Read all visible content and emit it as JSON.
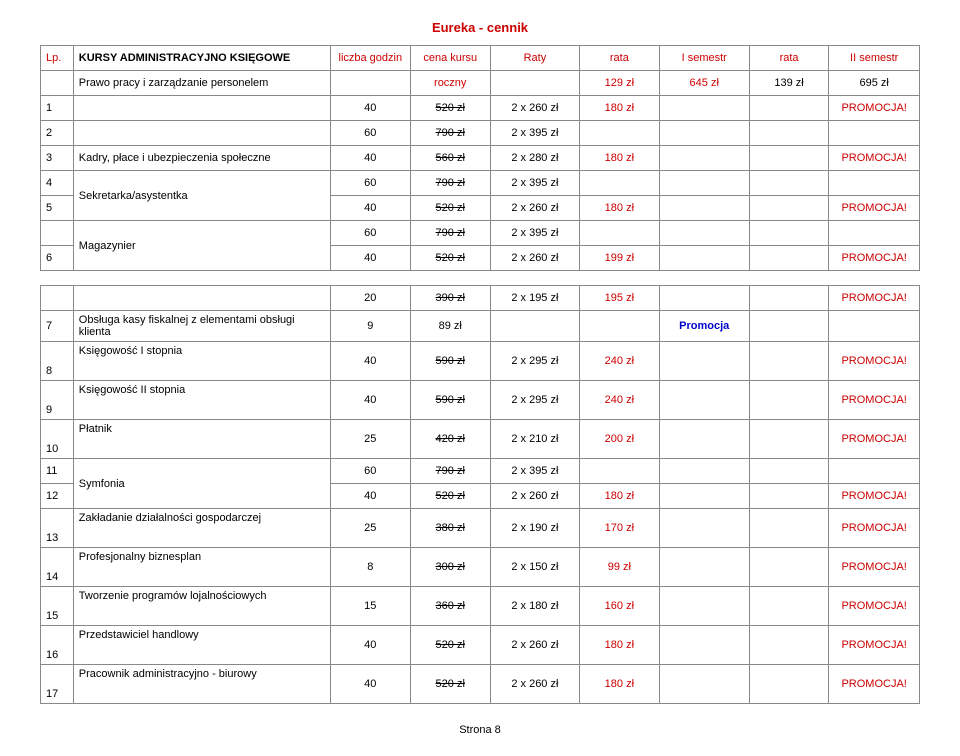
{
  "title": "Eureka - cennik",
  "headers": {
    "lp": "Lp.",
    "course": "KURSY ADMINISTRACYJNO KSIĘGOWE",
    "hours": "liczba godzin",
    "price": "cena kursu",
    "raty": "Raty",
    "rata1": "rata",
    "sem1": "I semestr",
    "rata2": "rata",
    "sem2": "II semestr"
  },
  "colors": {
    "red": "#cc0000",
    "blue": "#0000cc",
    "border": "#888888",
    "bg": "#ffffff"
  },
  "rows": [
    {
      "type": "subheader",
      "course": "Prawo pracy i zarządzanie personelem",
      "price": "roczny",
      "rata1": "129 zł",
      "sem1": "645 zł",
      "rata2": "139 zł",
      "sem2": "695 zł",
      "sem1_red": true,
      "rata1_red": true
    },
    {
      "lp": "1",
      "hours": "40",
      "price": "520 zł",
      "strike": true,
      "raty": "2 x 260 zł",
      "rata1": "180 zł",
      "sem2": "PROMOCJA!",
      "rata1_red": true,
      "sem2_red": true
    },
    {
      "lp": "2",
      "hours": "60",
      "price": "790 zł",
      "strike": true,
      "raty": "2 x 395 zł"
    },
    {
      "lp": "3",
      "course": "Kadry, płace  i ubezpieczenia społeczne",
      "hours": "40",
      "price": "560 zł",
      "strike": true,
      "raty": "2 x 280 zł",
      "rata1": "180 zł",
      "sem2": "PROMOCJA!",
      "rata1_red": true,
      "sem2_red": true
    },
    {
      "lp": "4",
      "course": "Sekretarka/asystentka",
      "courseRowspan": 2,
      "hours": "60",
      "price": "790 zł",
      "strike": true,
      "raty": "2 x 395 zł"
    },
    {
      "lp": "5",
      "hours": "40",
      "price": "520 zł",
      "strike": true,
      "raty": "2 x 260 zł",
      "rata1": "180 zł",
      "sem2": "PROMOCJA!",
      "rata1_red": true,
      "sem2_red": true
    },
    {
      "lp": "",
      "course": "Magazynier",
      "courseRowspan": 2,
      "hours": "60",
      "price": "790 zł",
      "strike": true,
      "raty": "2 x 395 zł"
    },
    {
      "lp": "6",
      "hours": "40",
      "price": "520 zł",
      "strike": true,
      "raty": "2 x 260 zł",
      "rata1": "199 zł",
      "sem2": "PROMOCJA!",
      "rata1_red": true,
      "sem2_red": true
    },
    {
      "type": "spacer"
    },
    {
      "lp": "",
      "course": "",
      "hours": "20",
      "price": "390 zł",
      "strike": true,
      "raty": "2 x 195 zł",
      "rata1": "195 zł",
      "sem2": "PROMOCJA!",
      "rata1_red": true,
      "sem2_red": true
    },
    {
      "lp": "7",
      "course": "Obsługa kasy fiskalnej  z elementami obsługi klienta",
      "hours": "9",
      "price": "89 zł",
      "sem1": "Promocja",
      "sem1_blue": true,
      "sem1_bold": true
    },
    {
      "lp": "8",
      "course": "Księgowość I stopnia",
      "tall": true,
      "hours": "40",
      "price": "590 zł",
      "strike": true,
      "raty": "2 x 295 zł",
      "rata1": "240 zł",
      "sem2": "PROMOCJA!",
      "rata1_red": true,
      "sem2_red": true
    },
    {
      "lp": "9",
      "course": "Księgowość II stopnia",
      "tall": true,
      "hours": "40",
      "price": "590 zł",
      "strike": true,
      "raty": "2 x 295 zł",
      "rata1": "240 zł",
      "sem2": "PROMOCJA!",
      "rata1_red": true,
      "sem2_red": true
    },
    {
      "lp": "10",
      "course": "Płatnik",
      "tall": true,
      "hours": "25",
      "price": "420 zł",
      "strike": true,
      "raty": "2 x 210 zł",
      "rata1": "200 zł",
      "sem2": "PROMOCJA!",
      "rata1_red": true,
      "sem2_red": true
    },
    {
      "lp": "11",
      "course": "Symfonia",
      "courseRowspan": 2,
      "hours": "60",
      "price": "790 zł",
      "strike": true,
      "raty": "2 x 395 zł"
    },
    {
      "lp": "12",
      "hours": "40",
      "price": "520 zł",
      "strike": true,
      "raty": "2 x 260 zł",
      "rata1": "180 zł",
      "sem2": "PROMOCJA!",
      "rata1_red": true,
      "sem2_red": true
    },
    {
      "lp": "13",
      "course": "Zakładanie działalności gospodarczej",
      "tall": true,
      "hours": "25",
      "price": "380 zł",
      "strike": true,
      "raty": "2 x 190 zł",
      "rata1": "170 zł",
      "sem2": "PROMOCJA!",
      "rata1_red": true,
      "sem2_red": true
    },
    {
      "lp": "14",
      "course": "Profesjonalny biznesplan",
      "tall": true,
      "hours": "8",
      "price": "300 zł",
      "strike": true,
      "raty": "2 x 150 zł",
      "rata1": "99 zł",
      "sem2": "PROMOCJA!",
      "rata1_red": true,
      "sem2_red": true
    },
    {
      "lp": "15",
      "course": "Tworzenie programów lojalnościowych",
      "tall": true,
      "hours": "15",
      "price": "360 zł",
      "strike": true,
      "raty": "2 x 180 zł",
      "rata1": "160 zł",
      "sem2": "PROMOCJA!",
      "rata1_red": true,
      "sem2_red": true
    },
    {
      "lp": "16",
      "course": "Przedstawiciel handlowy",
      "tall": true,
      "hours": "40",
      "price": "520 zł",
      "strike": true,
      "raty": "2 x 260 zł",
      "rata1": "180 zł",
      "sem2": "PROMOCJA!",
      "rata1_red": true,
      "sem2_red": true
    },
    {
      "lp": "17",
      "course": "Pracownik administracyjno - biurowy",
      "tall": true,
      "hours": "40",
      "price": "520 zł",
      "strike": true,
      "raty": "2 x 260 zł",
      "rata1": "180 zł",
      "sem2": "PROMOCJA!",
      "rata1_red": true,
      "sem2_red": true
    }
  ],
  "footer": "Strona 8"
}
